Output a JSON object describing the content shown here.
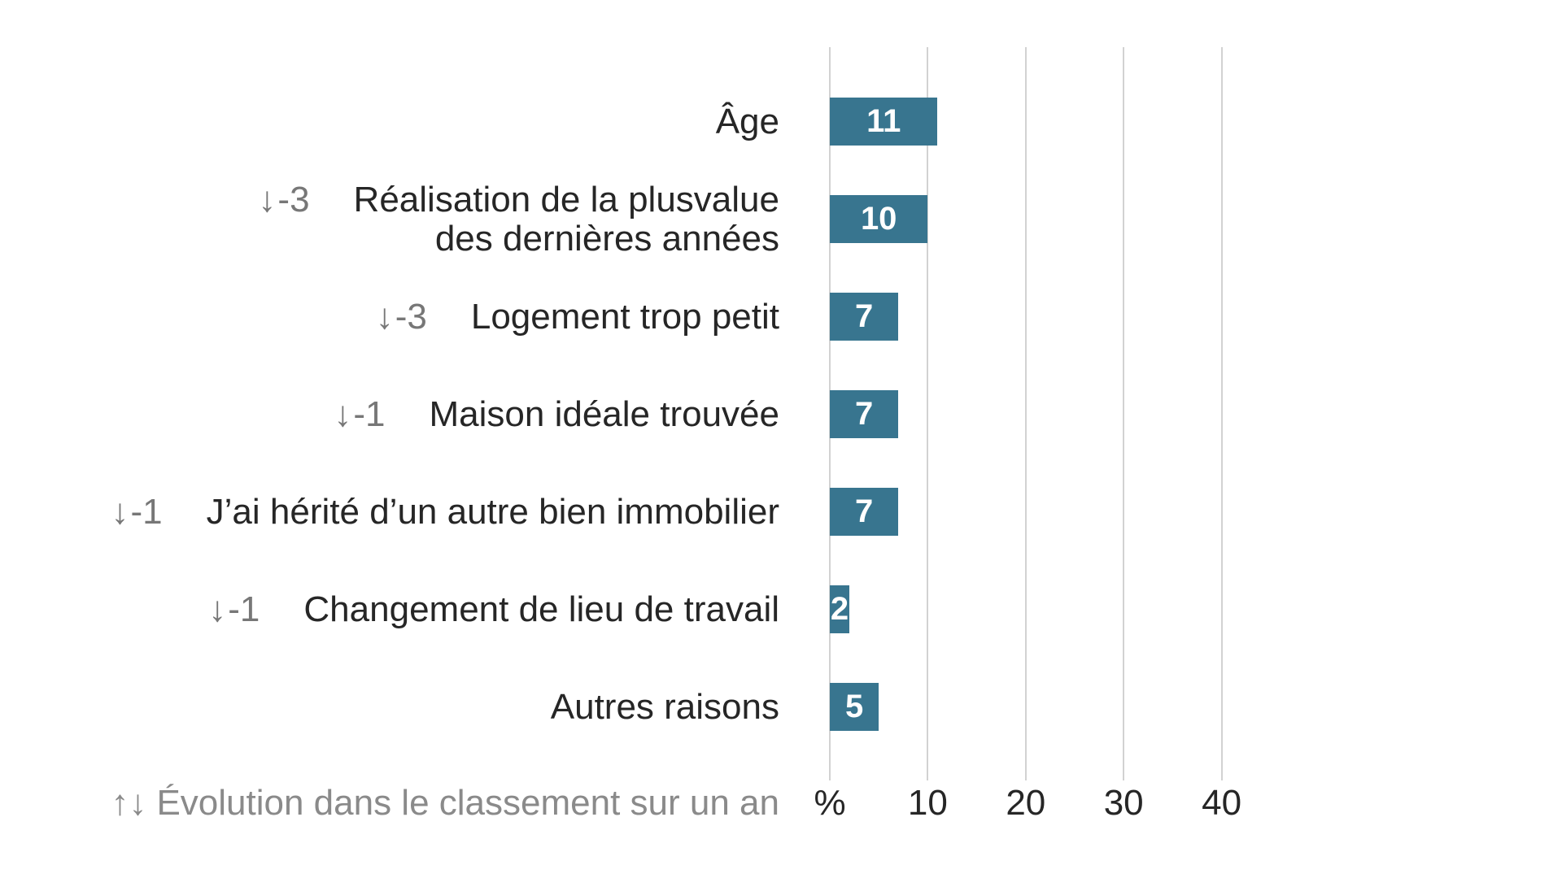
{
  "chart_data": {
    "type": "bar",
    "orientation": "horizontal",
    "unit": "%",
    "categories": [
      "Âge",
      "Réalisation de la plusvalue\ndes dernières années",
      "Logement trop petit",
      "Maison idéale trouvée",
      "J’ai hérité d’un autre bien immobilier",
      "Changement de lieu de travail",
      "Autres raisons"
    ],
    "values": [
      11,
      10,
      7,
      7,
      7,
      2,
      5
    ],
    "rank_changes": [
      null,
      "-3",
      "-3",
      "-1",
      "-1",
      "-1",
      null
    ],
    "x_ticks": [
      "%",
      "10",
      "20",
      "30",
      "40"
    ],
    "x_tick_values": [
      0,
      10,
      20,
      30,
      40
    ],
    "xlim": [
      0,
      44
    ],
    "grid": true,
    "legend_position": "none",
    "bar_color": "#38758f",
    "value_label_color": "#ffffff"
  },
  "icons": {
    "down_arrow": "↓",
    "up_down_arrows": "↑↓"
  },
  "footnote": {
    "icon": "↑↓",
    "text": "Évolution dans le classement sur un an"
  },
  "colors": {
    "background": "#ffffff",
    "label_text": "#262626",
    "rank_change_text": "#777777",
    "footnote_text": "#8a8a8a",
    "gridline": "#d2d2d2",
    "bar": "#38758f",
    "bar_value_text": "#ffffff"
  }
}
